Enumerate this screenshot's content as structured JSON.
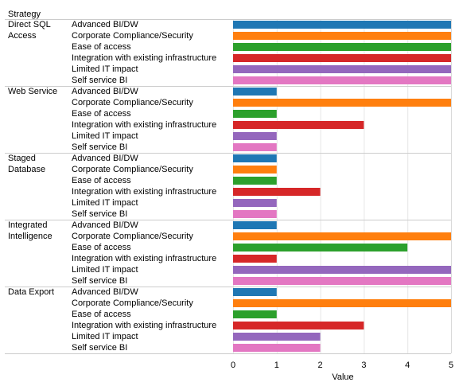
{
  "chart_data": {
    "type": "bar",
    "orientation": "horizontal",
    "row_dimension_label": "Strategy",
    "xlabel": "Value",
    "xlim": [
      0,
      5
    ],
    "xticks": [
      0,
      1,
      2,
      3,
      4,
      5
    ],
    "categories": [
      "Advanced BI/DW",
      "Corporate Compliance/Security",
      "Ease of access",
      "Integration with existing infrastructure",
      "Limited IT impact",
      "Self service BI"
    ],
    "colors": [
      "#1f77b4",
      "#ff7f0e",
      "#2ca02c",
      "#d62728",
      "#9467bd",
      "#e377c2"
    ],
    "groups": [
      {
        "lines": [
          "Direct SQL",
          "Access"
        ],
        "values": [
          5,
          5,
          5,
          5,
          5,
          5
        ]
      },
      {
        "lines": [
          "Web Service"
        ],
        "values": [
          1,
          5,
          1,
          3,
          1,
          1
        ]
      },
      {
        "lines": [
          "Staged",
          "Database"
        ],
        "values": [
          1,
          1,
          1,
          2,
          1,
          1
        ]
      },
      {
        "lines": [
          "Integrated",
          "Intelligence"
        ],
        "values": [
          1,
          5,
          4,
          1,
          5,
          5
        ]
      },
      {
        "lines": [
          "Data Export"
        ],
        "values": [
          1,
          5,
          1,
          3,
          2,
          2
        ]
      }
    ],
    "grid": true,
    "legend": "none"
  }
}
